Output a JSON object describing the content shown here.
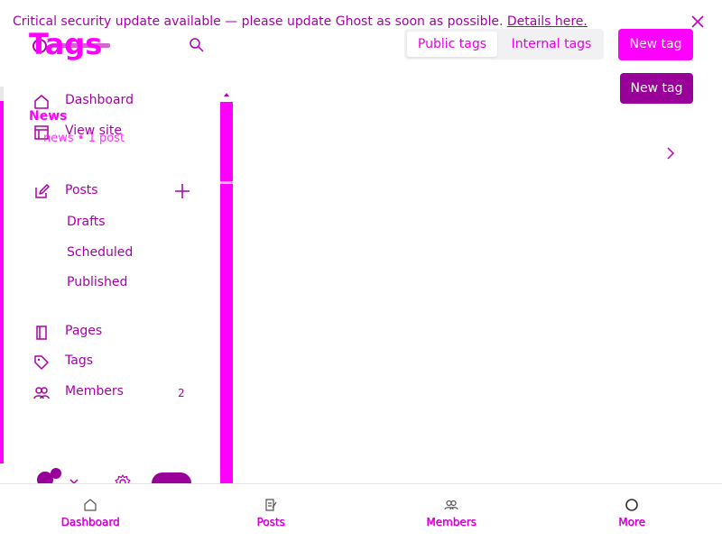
{
  "banner": {
    "message": "Critical security update available — please update Ghost as soon as possible.",
    "link_label": "Details here."
  },
  "header": {
    "title": "Tags",
    "tabs": [
      {
        "label": "Public tags",
        "active": true
      },
      {
        "label": "Internal tags",
        "active": false
      }
    ],
    "new_tag_label": "New tag",
    "new_tag_label_2": "New tag"
  },
  "sidebar": {
    "items": [
      {
        "label": "Dashboard",
        "icon": "home-icon"
      },
      {
        "label": "View site",
        "icon": "layout-icon"
      },
      {
        "label": "Posts",
        "icon": "edit-icon"
      },
      {
        "label": "Pages",
        "icon": "page-icon"
      },
      {
        "label": "Tags",
        "icon": "tag-icon"
      },
      {
        "label": "Members",
        "icon": "members-icon",
        "count": "2"
      }
    ],
    "sub_items": [
      {
        "label": "Drafts"
      },
      {
        "label": "Scheduled"
      },
      {
        "label": "Published"
      }
    ]
  },
  "tag_list": {
    "items": [
      {
        "name": "News",
        "meta": "news • 1 post"
      }
    ]
  },
  "bottom_nav": {
    "items": [
      {
        "label": "Dashboard",
        "icon": "home-icon"
      },
      {
        "label": "Posts",
        "icon": "edit-icon"
      },
      {
        "label": "Members",
        "icon": "members-icon"
      },
      {
        "label": "More",
        "icon": "circle-icon"
      }
    ]
  },
  "colors": {
    "accent": "#ff00ff",
    "accent_dark": "#990099",
    "text": "#a800a8"
  }
}
